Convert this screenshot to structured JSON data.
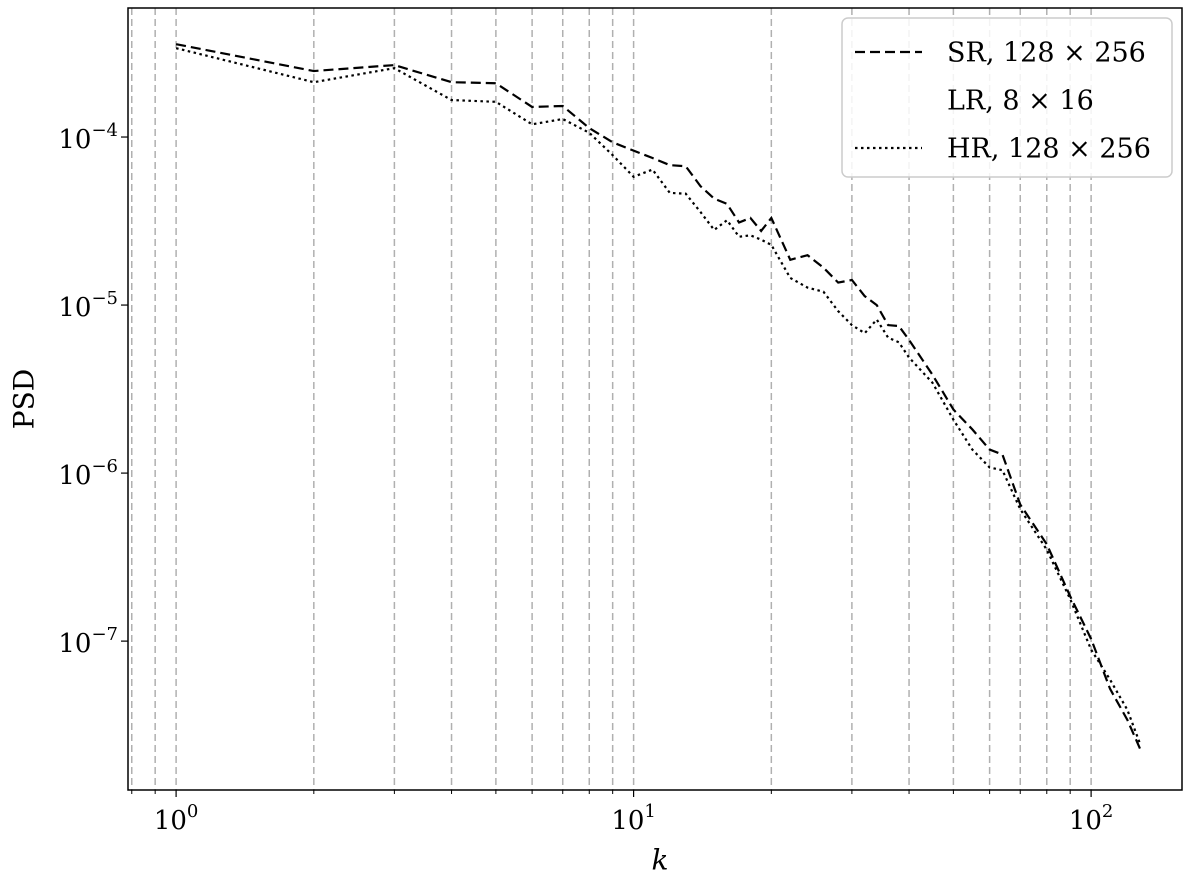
{
  "chart_data": {
    "type": "line",
    "xlabel": "k",
    "ylabel": "PSD",
    "xscale": "log",
    "yscale": "log",
    "xlim": [
      0.785,
      158
    ],
    "ylim": [
      1.3e-08,
      0.000586
    ],
    "xticks": [
      {
        "value": 1,
        "label": "100"
      },
      {
        "value": 10,
        "label": "101"
      },
      {
        "value": 100,
        "label": "102"
      }
    ],
    "x_minor_ticks": [
      0.8,
      0.9,
      2,
      3,
      4,
      5,
      6,
      7,
      8,
      9,
      20,
      30,
      40,
      50,
      60,
      70,
      80,
      90
    ],
    "yticks": [
      {
        "value": 0.0001,
        "label": "10−4"
      },
      {
        "value": 1e-05,
        "label": "10−5"
      },
      {
        "value": 1e-06,
        "label": "10−6"
      },
      {
        "value": 1e-07,
        "label": "10−7"
      }
    ],
    "grid": true,
    "legend": "upper right",
    "x": [
      1,
      2,
      3,
      4,
      5,
      6,
      7,
      8,
      9,
      10,
      11,
      12,
      13,
      14,
      15,
      16,
      17,
      18,
      19,
      20,
      22,
      24,
      26,
      28,
      30,
      32,
      34,
      36,
      38,
      40,
      45,
      50,
      55,
      60,
      64,
      70,
      80,
      90,
      100,
      110,
      120,
      128
    ],
    "series": [
      {
        "name": "SR, 128 × 256",
        "color": "#000000",
        "dash": "dashed",
        "values": [
          0.000357,
          0.000247,
          0.000268,
          0.000212,
          0.000209,
          0.000151,
          0.000153,
          0.000113,
          9.3e-05,
          8.3e-05,
          7.5e-05,
          6.8e-05,
          6.7e-05,
          5.1e-05,
          4.3e-05,
          4e-05,
          3.1e-05,
          3.3e-05,
          2.76e-05,
          3.3e-05,
          1.86e-05,
          1.98e-05,
          1.67e-05,
          1.36e-05,
          1.41e-05,
          1.13e-05,
          1e-05,
          7.6e-06,
          7.5e-06,
          6.2e-06,
          3.85e-06,
          2.39e-06,
          1.82e-06,
          1.38e-06,
          1.29e-06,
          6.5e-07,
          3.77e-07,
          1.85e-07,
          1.03e-07,
          5.2e-08,
          3.4e-08,
          2.28e-08
        ]
      },
      {
        "name": "LR, 8 × 16",
        "color": "none",
        "dash": "solid"
      },
      {
        "name": "HR, 128 × 256",
        "color": "#000000",
        "dash": "dotted",
        "values": [
          0.000338,
          0.000212,
          0.000257,
          0.000166,
          0.000162,
          0.000119,
          0.000128,
          0.000106,
          7.8e-05,
          5.8e-05,
          6.4e-05,
          4.65e-05,
          4.6e-05,
          3.58e-05,
          2.8e-05,
          3.2e-05,
          2.55e-05,
          2.6e-05,
          2.45e-05,
          2.28e-05,
          1.45e-05,
          1.27e-05,
          1.2e-05,
          9.2e-06,
          7.6e-06,
          6.8e-06,
          8.2e-06,
          6.4e-06,
          6e-06,
          4.87e-06,
          3.45e-06,
          2.08e-06,
          1.38e-06,
          1.08e-06,
          1.04e-06,
          6.1e-07,
          3.5e-07,
          1.78e-07,
          8.9e-08,
          5.9e-08,
          3.9e-08,
          2.44e-08
        ]
      }
    ]
  }
}
